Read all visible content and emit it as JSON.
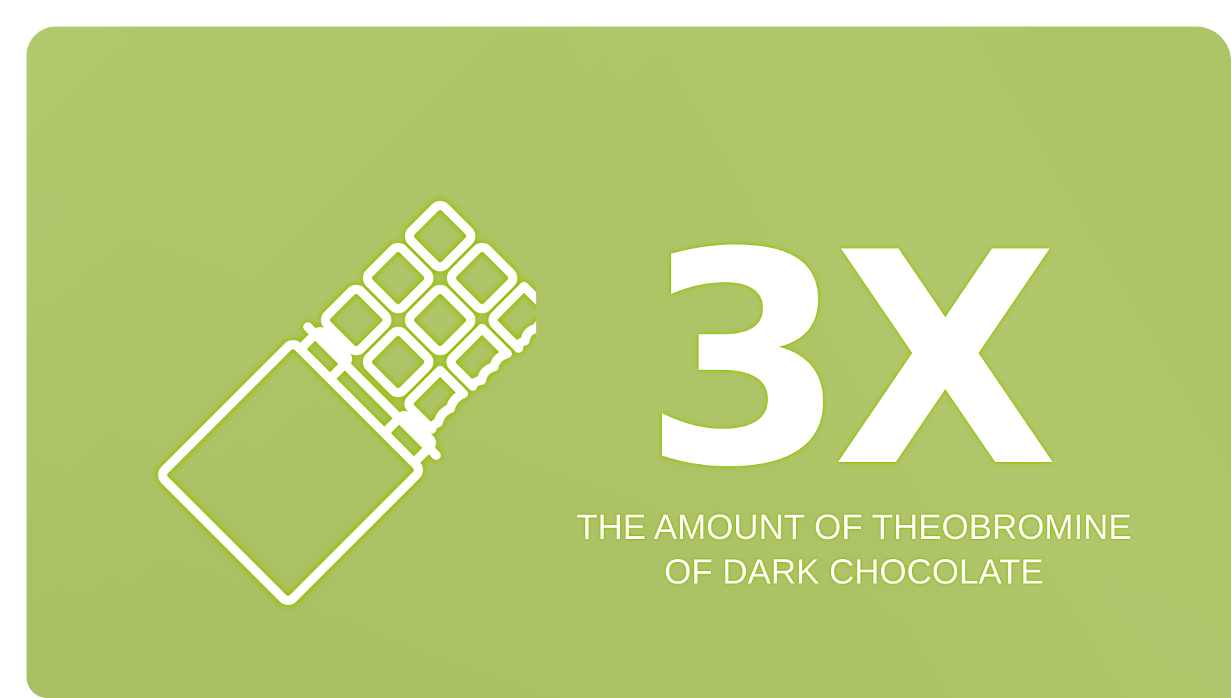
{
  "stat": {
    "value": "3X",
    "caption_line1": "THE AMOUNT OF THEOBROMINE",
    "caption_line2": "OF DARK CHOCOLATE"
  },
  "icon": "chocolate-bar-bitten-icon",
  "colors": {
    "background": "#adc566",
    "text": "#ffffff",
    "glow": "#98c000"
  }
}
